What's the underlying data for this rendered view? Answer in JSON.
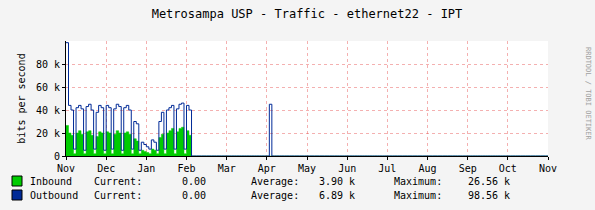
{
  "chart_data": {
    "type": "line",
    "title": "Metrosampa USP - Traffic - ethernet22 - IPT",
    "y_label": "bits per second",
    "watermark": "RRDTOOL / TOBI OETIKER",
    "categories": [
      "Nov",
      null,
      null,
      null,
      null,
      null,
      null,
      null,
      null,
      null,
      null,
      null,
      null,
      null,
      null,
      null,
      "Dec",
      null,
      null,
      null,
      null,
      null,
      null,
      null,
      null,
      null,
      null,
      null,
      null,
      null,
      null,
      null,
      "Jan",
      null,
      null,
      null,
      null,
      null,
      null,
      null,
      null,
      null,
      null,
      null,
      null,
      null,
      null,
      null,
      "Feb",
      null,
      null,
      null,
      null,
      null,
      null,
      null,
      null,
      null,
      null,
      null,
      null,
      null,
      null,
      null,
      "Mar",
      null,
      null,
      null,
      null,
      null,
      null,
      null,
      null,
      null,
      null,
      null,
      null,
      null,
      null,
      null,
      "Apr",
      null,
      null,
      null,
      null,
      null,
      null,
      null,
      null,
      null,
      null,
      null,
      null,
      null,
      null,
      null,
      "May",
      null,
      null,
      null,
      null,
      null,
      null,
      null,
      null,
      null,
      null,
      null,
      null,
      null,
      null,
      null,
      "Jun",
      null,
      null,
      null,
      null,
      null,
      null,
      null,
      null,
      null,
      null,
      null,
      null,
      null,
      null,
      null,
      "Jul",
      null,
      null,
      null,
      null,
      null,
      null,
      null,
      null,
      null,
      null,
      null,
      null,
      null,
      null,
      null,
      "Aug",
      null,
      null,
      null,
      null,
      null,
      null,
      null,
      null,
      null,
      null,
      null,
      null,
      null,
      null,
      null,
      "Sep",
      null,
      null,
      null,
      null,
      null,
      null,
      null,
      null,
      null,
      null,
      null,
      null,
      null,
      null,
      null,
      "Oct",
      null,
      null,
      null,
      null,
      null,
      null,
      null,
      null,
      null,
      null,
      null,
      null,
      null,
      null,
      null,
      "Nov"
    ],
    "series": [
      {
        "name": "Inbound",
        "type": "area",
        "color": "#00cc00",
        "values": [
          26560,
          20000,
          18000,
          2000,
          20000,
          22000,
          19000,
          2000,
          21000,
          22000,
          18000,
          2000,
          17000,
          21000,
          20000,
          2000,
          21000,
          20000,
          2000,
          19000,
          22000,
          20000,
          2000,
          20000,
          21000,
          19000,
          2000,
          15000,
          13000,
          2000,
          5000,
          4000,
          3000,
          2000,
          6000,
          5000,
          2000,
          16000,
          19000,
          2000,
          20000,
          22000,
          24000,
          2000,
          21000,
          24000,
          25000,
          2000,
          22000,
          18000,
          0,
          0,
          0,
          0,
          0,
          0,
          0,
          0,
          0,
          0,
          0,
          0,
          0,
          0,
          0,
          0,
          0,
          0,
          0,
          0,
          0,
          0,
          0,
          0,
          0,
          0,
          0,
          0,
          0,
          0,
          0,
          0,
          0,
          0,
          0,
          0,
          0,
          0,
          0,
          0,
          0,
          0,
          0,
          0,
          0,
          0,
          0,
          0,
          0,
          0,
          0,
          0,
          0,
          0,
          0,
          0,
          0,
          0,
          0,
          0,
          0,
          0,
          0,
          0,
          0,
          0,
          0,
          0,
          0,
          0,
          0,
          0,
          0,
          0,
          0,
          0,
          0,
          0,
          0,
          0,
          0,
          0,
          0,
          0,
          0,
          0,
          0,
          0,
          0,
          0,
          0,
          0,
          0,
          0,
          0,
          0,
          0,
          0,
          0,
          0,
          0,
          0,
          0,
          0,
          0,
          0,
          0,
          0,
          0,
          0,
          0,
          0,
          0,
          0,
          0,
          0,
          0,
          0,
          0,
          0,
          0,
          0,
          0,
          0,
          0,
          0,
          0,
          0,
          0,
          0,
          0,
          0,
          0,
          0,
          0,
          0,
          0,
          0,
          0,
          0,
          0,
          0,
          0
        ],
        "stats": [
          {
            "label": "Current:",
            "text": "0.00"
          },
          {
            "label": "Average:",
            "text": "3.90 k"
          },
          {
            "label": "Maximum:",
            "text": "26.56 k"
          }
        ]
      },
      {
        "name": "Outbound",
        "type": "line",
        "color": "#002a97",
        "values": [
          98560,
          44000,
          40000,
          6000,
          42000,
          44000,
          41000,
          5000,
          43000,
          45000,
          40000,
          6000,
          38000,
          44000,
          42000,
          5000,
          44000,
          42000,
          6000,
          41000,
          45000,
          43000,
          5000,
          42000,
          44000,
          40000,
          6000,
          30000,
          28000,
          5000,
          12000,
          10000,
          8000,
          6000,
          14000,
          12000,
          5000,
          30000,
          38000,
          6000,
          40000,
          42000,
          44000,
          6000,
          41000,
          45000,
          46000,
          6000,
          44000,
          40000,
          0,
          0,
          0,
          0,
          0,
          0,
          0,
          0,
          0,
          0,
          0,
          0,
          0,
          0,
          0,
          0,
          0,
          0,
          0,
          0,
          0,
          0,
          0,
          0,
          0,
          0,
          0,
          0,
          0,
          0,
          0,
          45000,
          0,
          0,
          0,
          0,
          0,
          0,
          0,
          0,
          0,
          0,
          0,
          0,
          0,
          0,
          0,
          0,
          0,
          0,
          0,
          0,
          0,
          0,
          0,
          0,
          0,
          0,
          0,
          0,
          0,
          0,
          0,
          0,
          0,
          0,
          0,
          0,
          0,
          0,
          0,
          0,
          0,
          0,
          0,
          0,
          0,
          0,
          0,
          0,
          0,
          0,
          0,
          0,
          0,
          0,
          0,
          0,
          0,
          0,
          0,
          0,
          0,
          0,
          0,
          0,
          0,
          0,
          0,
          0,
          0,
          0,
          0,
          0,
          0,
          0,
          0,
          0,
          0,
          0,
          0,
          0,
          0,
          0,
          0,
          0,
          0,
          0,
          0,
          0,
          0,
          0,
          0,
          0,
          0,
          0,
          0,
          0,
          0,
          0,
          0,
          0,
          0,
          0,
          0,
          0,
          0,
          0,
          0,
          0,
          0,
          0,
          0
        ],
        "stats": [
          {
            "label": "Current:",
            "text": "0.00"
          },
          {
            "label": "Average:",
            "text": "6.89 k"
          },
          {
            "label": "Maximum:",
            "text": "98.56 k"
          }
        ]
      }
    ],
    "ylim": [
      0,
      100000
    ],
    "yticks": [
      0,
      {
        "value": 20000,
        "label": "20 k"
      },
      {
        "value": 40000,
        "label": "40 k"
      },
      {
        "value": 60000,
        "label": "60 k"
      },
      {
        "value": 80000,
        "label": "80 k"
      }
    ],
    "grid": true
  }
}
